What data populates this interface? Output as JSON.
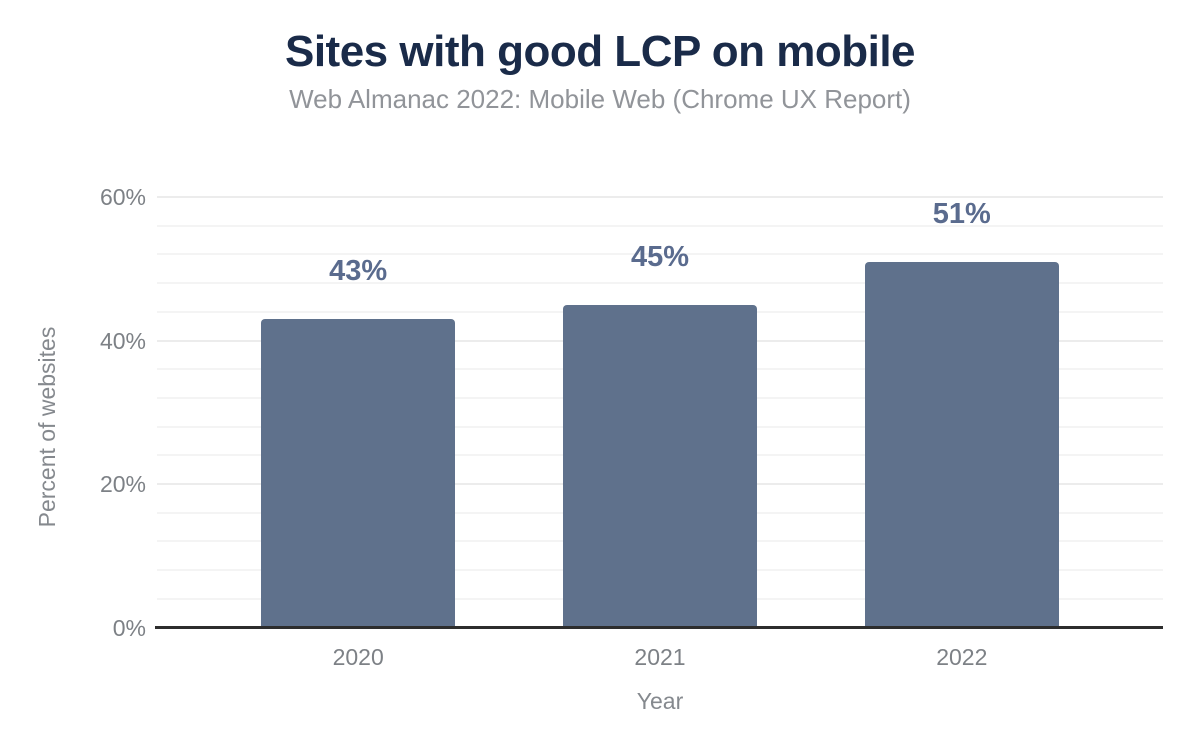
{
  "chart_data": {
    "type": "bar",
    "title": "Sites with good LCP on mobile",
    "subtitle": "Web Almanac 2022: Mobile Web (Chrome UX Report)",
    "categories": [
      "2020",
      "2021",
      "2022"
    ],
    "values": [
      43,
      45,
      51
    ],
    "data_labels": [
      "43%",
      "45%",
      "51%"
    ],
    "xlabel": "Year",
    "ylabel": "Percent of websites",
    "ylim": [
      0,
      60
    ],
    "yticks": [
      0,
      20,
      40,
      60
    ],
    "ytick_labels": [
      "0%",
      "20%",
      "40%",
      "60%"
    ],
    "minor_grid_step": 4,
    "major_grid_step": 20,
    "grid": true,
    "legend": "none",
    "colors": {
      "background": "#ffffff",
      "bar": "#5f718c",
      "data_label": "#5a6b8e",
      "title": "#1a2b49",
      "subtitle": "#919499",
      "tick_label": "#7d8186",
      "axis_title": "#85898e",
      "axis_line": "#2d2d2d",
      "grid_major": "#ececec",
      "grid_minor": "#f4f4f4"
    }
  }
}
